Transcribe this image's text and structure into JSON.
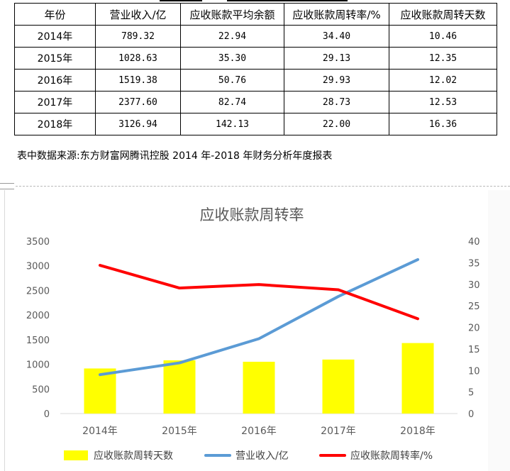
{
  "table": {
    "headers": [
      "年份",
      "营业收入/亿",
      "应收账款平均余额",
      "应收账款周转率/%",
      "应收账款周转天数"
    ],
    "rows": [
      [
        "2014年",
        "789.32",
        "22.94",
        "34.40",
        "10.46"
      ],
      [
        "2015年",
        "1028.63",
        "35.30",
        "29.13",
        "12.35"
      ],
      [
        "2016年",
        "1519.38",
        "50.76",
        "29.93",
        "12.02"
      ],
      [
        "2017年",
        "2377.60",
        "82.74",
        "28.73",
        "12.53"
      ],
      [
        "2018年",
        "3126.94",
        "142.13",
        "22.00",
        "16.36"
      ]
    ]
  },
  "source_note": "表中数据来源:东方财富网腾讯控股 2014 年-2018 年财务分析年度报表",
  "chart_data": {
    "type": "bar",
    "title": "应收账款周转率",
    "categories": [
      "2014年",
      "2015年",
      "2016年",
      "2017年",
      "2018年"
    ],
    "series": [
      {
        "name": "应收账款周转天数",
        "type": "bar",
        "axis": "right",
        "values": [
          10.46,
          12.35,
          12.02,
          12.53,
          16.36
        ],
        "color": "#ffff00"
      },
      {
        "name": "营业收入/亿",
        "type": "line",
        "axis": "left",
        "values": [
          789.32,
          1028.63,
          1519.38,
          2377.6,
          3126.94
        ],
        "color": "#5b9bd5"
      },
      {
        "name": "应收账款周转率/%",
        "type": "line",
        "axis": "right",
        "values": [
          34.4,
          29.13,
          29.93,
          28.73,
          22.0
        ],
        "color": "#ff0000"
      }
    ],
    "y_left": {
      "ticks": [
        "0",
        "500",
        "1000",
        "1500",
        "2000",
        "2500",
        "3000",
        "3500"
      ],
      "range": [
        0,
        3500
      ]
    },
    "y_right": {
      "ticks": [
        "0",
        "5",
        "10",
        "15",
        "20",
        "25",
        "30",
        "35",
        "40"
      ],
      "range": [
        0,
        40
      ]
    },
    "grid": false,
    "legend": "bottom"
  }
}
